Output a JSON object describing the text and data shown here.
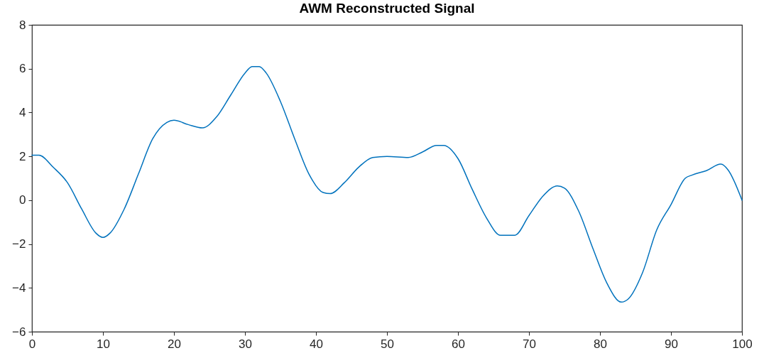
{
  "chart_data": {
    "type": "line",
    "title": "AWM Reconstructed Signal",
    "x": [
      0,
      1,
      3,
      5,
      7,
      9,
      10,
      11,
      13,
      15,
      17,
      19,
      20,
      22,
      24,
      26,
      28,
      30,
      31,
      32,
      33,
      35,
      37,
      39,
      41,
      42,
      44,
      46,
      48,
      50,
      53,
      55,
      57,
      58,
      60,
      62,
      64,
      66,
      68,
      70,
      72,
      74,
      75,
      77,
      79,
      81,
      83,
      84,
      86,
      88,
      90,
      92,
      93,
      95,
      97,
      98,
      100
    ],
    "series": [
      {
        "color": "#0072bd",
        "values": [
          2.05,
          2.05,
          1.5,
          0.8,
          -0.4,
          -1.5,
          -1.7,
          -1.5,
          -0.4,
          1.2,
          2.8,
          3.55,
          3.65,
          3.45,
          3.3,
          3.8,
          4.8,
          5.8,
          6.1,
          6.1,
          5.8,
          4.5,
          2.8,
          1.2,
          0.35,
          0.3,
          0.8,
          1.5,
          1.95,
          2.0,
          1.95,
          2.2,
          2.5,
          2.5,
          1.9,
          0.5,
          -0.8,
          -1.6,
          -1.6,
          -0.7,
          0.2,
          0.65,
          0.55,
          -0.5,
          -2.2,
          -3.8,
          -4.65,
          -4.5,
          -3.3,
          -1.35,
          -0.2,
          1.0,
          1.15,
          1.35,
          1.65,
          1.4,
          0.0
        ]
      }
    ],
    "xlim": [
      0,
      100
    ],
    "xticks": [
      0,
      10,
      20,
      30,
      40,
      50,
      60,
      70,
      80,
      90,
      100
    ],
    "ylim": [
      -6,
      8
    ],
    "yticks": [
      -6,
      -4,
      -2,
      0,
      2,
      4,
      6,
      8
    ],
    "grid": false,
    "marker": "none",
    "line_style": "solid"
  }
}
